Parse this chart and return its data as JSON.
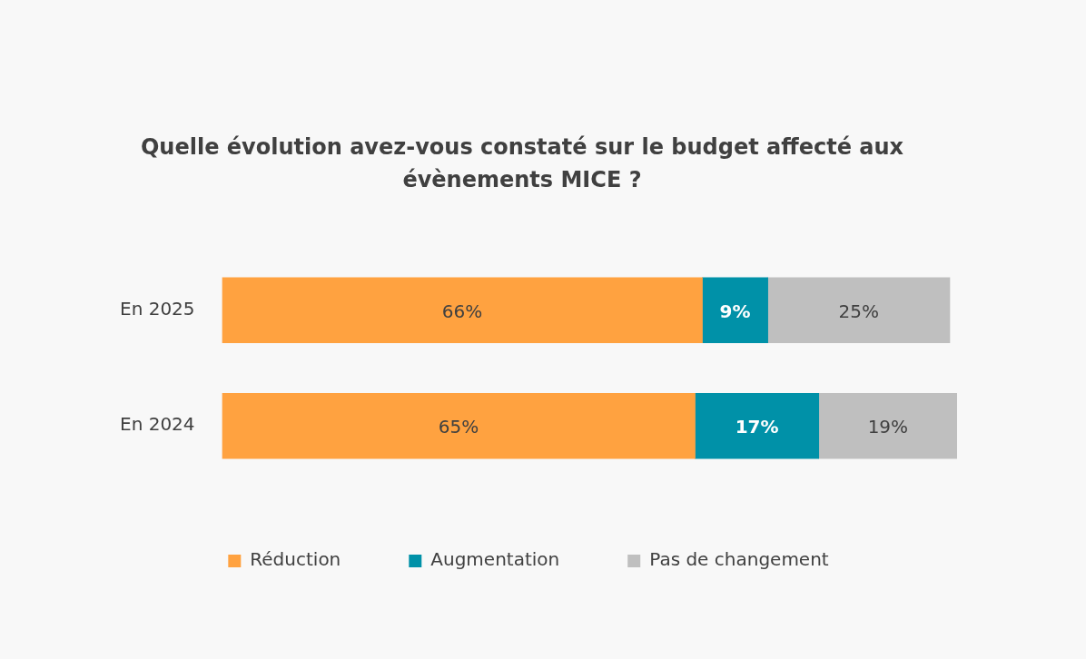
{
  "chart_data": {
    "type": "bar",
    "orientation": "horizontal",
    "stacked": true,
    "tick_labels": "y",
    "title": "Quelle évolution avez-vous constaté sur le budget affecté aux évènements MICE ?",
    "categories": [
      "En 2025",
      "En 2024"
    ],
    "series": [
      {
        "name": "Réduction",
        "color": "#ffa240",
        "values": [
          66,
          65
        ],
        "value_labels": [
          "66%",
          "65%"
        ]
      },
      {
        "name": "Augmentation",
        "color": "#0091a8",
        "values": [
          9,
          17
        ],
        "value_labels": [
          "9%",
          "17%"
        ]
      },
      {
        "name": "Pas de changement",
        "color": "#bfbfbf",
        "values": [
          25,
          19
        ],
        "value_labels": [
          "25%",
          "19%"
        ]
      }
    ],
    "legend": "bottom"
  }
}
